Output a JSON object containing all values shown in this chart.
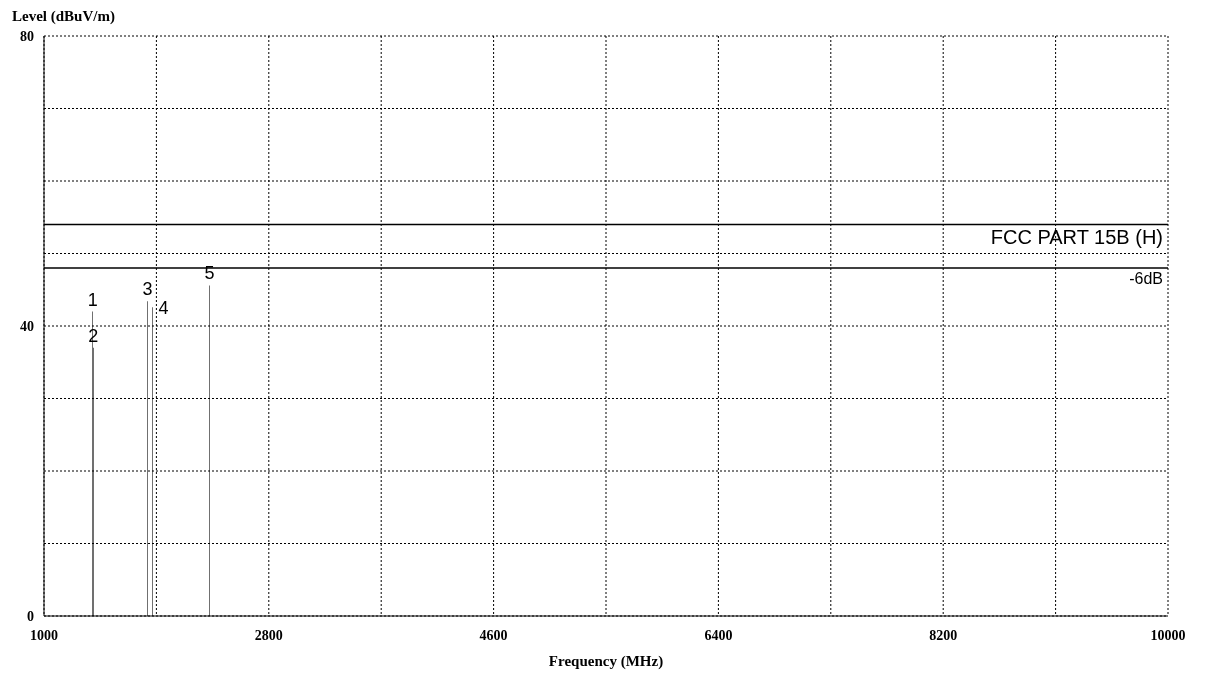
{
  "chart_data": {
    "type": "bar",
    "xlabel": "Frequency (MHz)",
    "ylabel": "Level (dBuV/m)",
    "x": [
      1390,
      1395,
      1829,
      1868,
      2326
    ],
    "series": [
      {
        "color": "#000000",
        "values": [
          42,
          37,
          43.4,
          42.6,
          45.6
        ]
      }
    ],
    "xlim": [
      1000,
      10000
    ],
    "xticks": [
      1000,
      {
        "value": 1900,
        "label": null
      },
      2800,
      {
        "value": 3700,
        "label": null
      },
      4600,
      {
        "value": 5500,
        "label": null
      },
      6400,
      {
        "value": 7300,
        "label": null
      },
      8200,
      {
        "value": 9100,
        "label": null
      },
      10000
    ],
    "ylim": [
      0,
      80
    ],
    "yticks": [
      0,
      {
        "value": 10,
        "label": null
      },
      {
        "value": 20,
        "label": null
      },
      {
        "value": 30,
        "label": null
      },
      40,
      {
        "value": 50,
        "label": null
      },
      {
        "value": 60,
        "label": null
      },
      {
        "value": 70,
        "label": null
      },
      80
    ],
    "grid": true,
    "ref_lines": [
      {
        "axis": "y",
        "value": 54,
        "label": "FCC PART 15B (H)",
        "color": "#000000",
        "line_style": "solid"
      },
      {
        "axis": "y",
        "value": 48,
        "label": "-6dB",
        "color": "#000000",
        "line_style": "solid"
      }
    ],
    "annotations": [
      {
        "text": "1",
        "x": 1390,
        "y": 42
      },
      {
        "text": "2",
        "x": 1395,
        "y": 37
      },
      {
        "text": "3",
        "x": 1829,
        "y": 43.4
      },
      {
        "text": "4",
        "x": 1868,
        "y": 42.6
      },
      {
        "text": "5",
        "x": 2326,
        "y": 45.6
      }
    ]
  }
}
